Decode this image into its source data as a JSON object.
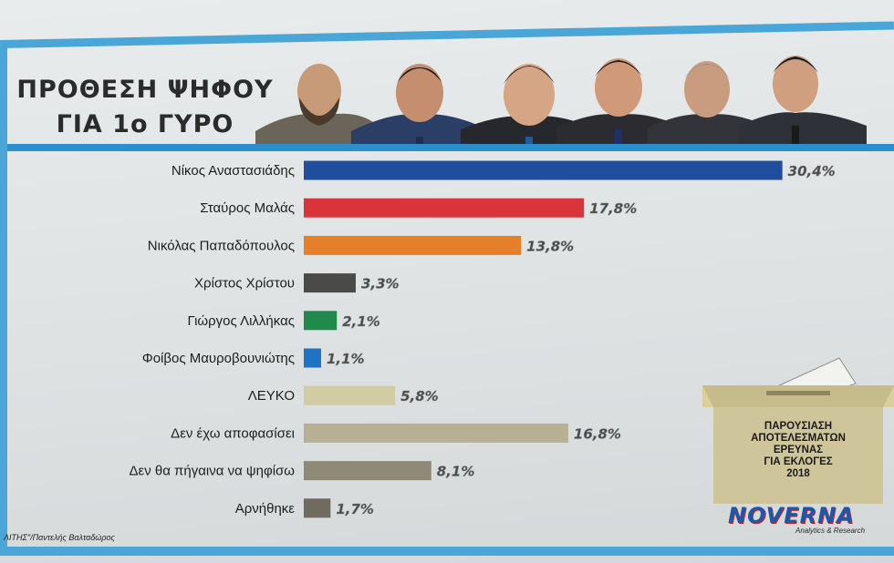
{
  "header": {
    "title_line1": "ΠΡΟΘΕΣΗ ΨΗΦΟΥ",
    "title_line2": "ΓΙΑ 1ο ΓΥΡΟ"
  },
  "chart_data": {
    "type": "bar",
    "orientation": "horizontal",
    "title": "ΠΡΟΘΕΣΗ ΨΗΦΟΥ ΓΙΑ 1ο ΓΥΡΟ",
    "xlabel": "",
    "ylabel": "",
    "xlim": [
      0,
      31
    ],
    "grid": false,
    "categories": [
      "Νίκος Αναστασιάδης",
      "Σταύρος Μαλάς",
      "Νικόλας Παπαδόπουλος",
      "Χρίστος Χρίστου",
      "Γιώργος Λιλλήκας",
      "Φοίβος Μαυροβουνιώτης",
      "ΛΕΥΚΟ",
      "Δεν έχω αποφασίσει",
      "Δεν θα πήγαινα να ψηφίσω",
      "Αρνήθηκε"
    ],
    "values": [
      30.4,
      17.8,
      13.8,
      3.3,
      2.1,
      1.1,
      5.8,
      16.8,
      8.1,
      1.7
    ],
    "value_labels": [
      "30,4%",
      "17,8%",
      "13,8%",
      "3,3%",
      "2,1%",
      "1,1%",
      "5,8%",
      "16,8%",
      "8,1%",
      "1,7%"
    ],
    "colors": [
      "#1f4e9c",
      "#d9343a",
      "#e67f2a",
      "#4a4a48",
      "#1f8a4c",
      "#1f72c4",
      "#d1cca3",
      "#b8b094",
      "#8f8a78",
      "#6f6b5f"
    ]
  },
  "ballot_box": {
    "lines": [
      "ΠΑΡΟΥΣΙΑΣΗ",
      "ΑΠΟΤΕΛΕΣΜΑΤΩΝ",
      "ΕΡΕΥΝΑΣ",
      "ΓΙΑ ΕΚΛΟΓΕΣ",
      "2018"
    ]
  },
  "logo": {
    "name": "NOVERNA",
    "tagline": "Analytics & Research"
  },
  "credit": "ΛΙΤΗΣ\"/Παντελής Βαλταδώρος"
}
